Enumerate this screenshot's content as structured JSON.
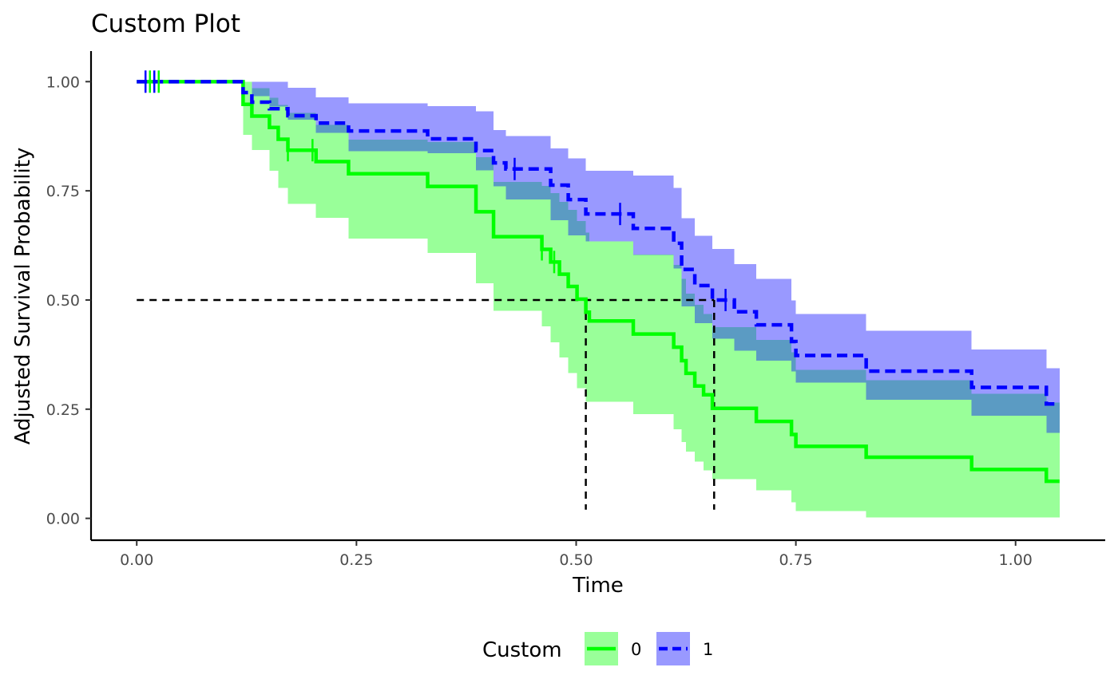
{
  "chart_data": {
    "type": "line",
    "title": "Custom Plot",
    "xlabel": "Time",
    "ylabel": "Adjusted Survival Probability",
    "xlim": [
      -0.052,
      1.102
    ],
    "ylim": [
      -0.05,
      1.07
    ],
    "x_ticks": [
      0.0,
      0.25,
      0.5,
      0.75,
      1.0
    ],
    "x_tick_labels": [
      "0.00",
      "0.25",
      "0.50",
      "0.75",
      "1.00"
    ],
    "y_ticks": [
      0.0,
      0.25,
      0.5,
      0.75,
      1.0
    ],
    "y_tick_labels": [
      "0.00",
      "0.25",
      "0.50",
      "0.75",
      "1.00"
    ],
    "grid": false,
    "legend": {
      "title": "Custom",
      "position": "bottom",
      "entries": [
        "0",
        "1"
      ]
    },
    "median_reference": {
      "y": 0.5,
      "x_start": 0.0,
      "group_medians": [
        0.511,
        0.657
      ]
    },
    "colors": {
      "line_0": "#00ff00",
      "line_1": "#0000ff",
      "band_0": "#99ff99",
      "band_1": "#9999ff",
      "overlap": "#5b9bc3",
      "overlap_line": "#009966",
      "reference": "#000000",
      "axis": "#000000"
    },
    "series": [
      {
        "name": "0",
        "line": "solid",
        "x": [
          0.0,
          0.121,
          0.131,
          0.151,
          0.161,
          0.172,
          0.204,
          0.241,
          0.331,
          0.386,
          0.406,
          0.461,
          0.471,
          0.481,
          0.491,
          0.501,
          0.511,
          0.515,
          0.565,
          0.611,
          0.62,
          0.625,
          0.635,
          0.645,
          0.655,
          0.705,
          0.745,
          0.75,
          0.83,
          0.95,
          1.035
        ],
        "y": [
          1.0,
          0.948,
          0.921,
          0.895,
          0.868,
          0.843,
          0.817,
          0.789,
          0.76,
          0.702,
          0.645,
          0.616,
          0.587,
          0.559,
          0.531,
          0.502,
          0.472,
          0.452,
          0.422,
          0.392,
          0.361,
          0.332,
          0.303,
          0.283,
          0.252,
          0.222,
          0.192,
          0.165,
          0.14,
          0.112,
          0.085
        ],
        "lower": [
          1.0,
          0.878,
          0.843,
          0.796,
          0.757,
          0.72,
          0.688,
          0.641,
          0.608,
          0.538,
          0.475,
          0.44,
          0.403,
          0.368,
          0.333,
          0.298,
          0.267,
          0.267,
          0.239,
          0.204,
          0.175,
          0.153,
          0.13,
          0.11,
          0.09,
          0.064,
          0.037,
          0.017,
          0.002,
          0.002,
          0.002
        ],
        "upper": [
          1.0,
          1.0,
          0.985,
          0.963,
          0.947,
          0.928,
          0.901,
          0.867,
          0.862,
          0.827,
          0.77,
          0.761,
          0.745,
          0.725,
          0.706,
          0.681,
          0.654,
          0.634,
          0.604,
          0.58,
          0.548,
          0.515,
          0.489,
          0.468,
          0.438,
          0.409,
          0.38,
          0.34,
          0.316,
          0.285,
          0.265
        ],
        "x_end": 1.05,
        "censor_x": [
          0.015,
          0.025,
          0.172,
          0.2,
          0.461,
          0.475
        ]
      },
      {
        "name": "1",
        "line": "dashed",
        "x": [
          0.0,
          0.121,
          0.131,
          0.151,
          0.172,
          0.204,
          0.241,
          0.331,
          0.386,
          0.406,
          0.42,
          0.471,
          0.491,
          0.511,
          0.565,
          0.611,
          0.62,
          0.635,
          0.655,
          0.68,
          0.705,
          0.745,
          0.75,
          0.83,
          0.95,
          1.035
        ],
        "y": [
          1.0,
          0.975,
          0.953,
          0.938,
          0.922,
          0.905,
          0.887,
          0.869,
          0.842,
          0.814,
          0.8,
          0.763,
          0.73,
          0.697,
          0.664,
          0.63,
          0.57,
          0.533,
          0.5,
          0.473,
          0.443,
          0.405,
          0.373,
          0.337,
          0.3,
          0.262
        ],
        "lower": [
          1.0,
          1.0,
          0.967,
          0.943,
          0.913,
          0.883,
          0.841,
          0.836,
          0.797,
          0.76,
          0.73,
          0.683,
          0.648,
          0.634,
          0.603,
          0.572,
          0.485,
          0.447,
          0.411,
          0.384,
          0.361,
          0.336,
          0.311,
          0.272,
          0.235,
          0.196
        ],
        "upper": [
          1.0,
          1.0,
          1.0,
          1.0,
          0.986,
          0.964,
          0.95,
          0.944,
          0.932,
          0.889,
          0.875,
          0.847,
          0.824,
          0.796,
          0.785,
          0.757,
          0.687,
          0.647,
          0.617,
          0.582,
          0.548,
          0.499,
          0.468,
          0.43,
          0.387,
          0.344
        ],
        "x_end": 1.05,
        "censor_x": [
          0.01,
          0.02,
          0.43,
          0.55,
          0.67
        ]
      }
    ]
  }
}
